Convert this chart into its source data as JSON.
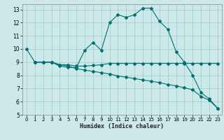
{
  "title": "",
  "xlabel": "Humidex (Indice chaleur)",
  "bg_color": "#cce8e8",
  "line_color": "#007070",
  "grid_color": "#99cccc",
  "xlim": [
    -0.5,
    23.5
  ],
  "ylim": [
    5,
    13.4
  ],
  "yticks": [
    5,
    6,
    7,
    8,
    9,
    10,
    11,
    12,
    13
  ],
  "xticks": [
    0,
    1,
    2,
    3,
    4,
    5,
    6,
    7,
    8,
    9,
    10,
    11,
    12,
    13,
    14,
    15,
    16,
    17,
    18,
    19,
    20,
    21,
    22,
    23
  ],
  "line1_x": [
    0,
    1,
    2,
    3,
    4,
    5,
    6,
    7,
    8,
    9,
    10,
    11,
    12,
    13,
    14,
    15,
    16,
    17,
    18,
    19,
    20,
    21,
    22,
    23
  ],
  "line1_y": [
    10.0,
    9.0,
    9.0,
    9.0,
    8.7,
    8.6,
    8.6,
    9.9,
    10.5,
    9.9,
    12.0,
    12.6,
    12.4,
    12.6,
    13.1,
    13.1,
    12.1,
    11.5,
    9.8,
    9.0,
    8.0,
    6.7,
    6.2,
    5.5
  ],
  "line2_x": [
    1,
    2,
    3,
    4,
    5,
    6,
    7,
    8,
    9,
    10,
    11,
    12,
    13,
    14,
    15,
    16,
    17,
    18,
    19,
    20,
    21,
    22,
    23
  ],
  "line2_y": [
    9.0,
    9.0,
    9.0,
    8.8,
    8.8,
    8.7,
    8.7,
    8.75,
    8.8,
    8.9,
    8.9,
    8.9,
    8.9,
    8.9,
    8.9,
    8.9,
    8.9,
    8.9,
    8.9,
    8.9,
    8.9,
    8.9,
    8.9
  ],
  "line3_x": [
    1,
    2,
    3,
    4,
    5,
    6,
    7,
    8,
    9,
    10,
    11,
    12,
    13,
    14,
    15,
    16,
    17,
    18,
    19,
    20,
    21,
    22,
    23
  ],
  "line3_y": [
    9.0,
    9.0,
    9.0,
    8.8,
    8.7,
    8.5,
    8.4,
    8.3,
    8.2,
    8.1,
    7.95,
    7.85,
    7.75,
    7.65,
    7.55,
    7.45,
    7.3,
    7.2,
    7.05,
    6.9,
    6.4,
    6.1,
    5.5
  ]
}
